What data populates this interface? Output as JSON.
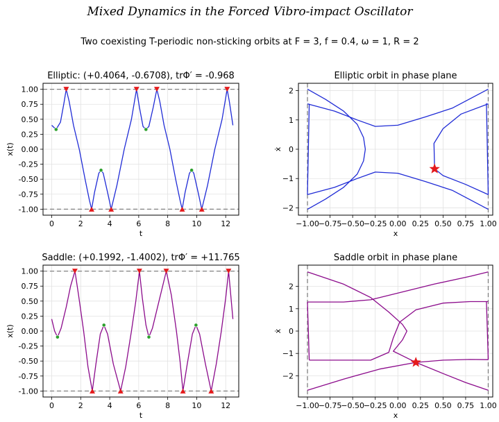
{
  "figure": {
    "title": "Mixed Dynamics in the Forced Vibro-impact Oscillator",
    "subtitle": "Two coexisting T-periodic non-sticking orbits at F = 3, f = 0.4, ω = 1, R = 2"
  },
  "chart_data": [
    {
      "type": "line",
      "title": "Elliptic: (+0.4064, -0.6708), trΦ′ = -0.968",
      "xlabel": "t",
      "ylabel": "x(t)",
      "xlim": [
        -0.6,
        12.9
      ],
      "ylim": [
        -1.1,
        1.1
      ],
      "xticks": [
        0,
        2,
        4,
        6,
        8,
        10,
        12
      ],
      "yticks": [
        1.0,
        0.75,
        0.5,
        0.25,
        0.0,
        -0.25,
        -0.5,
        -0.75,
        -1.0
      ],
      "ytick_labels": [
        "1.00",
        "0.75",
        "0.50",
        "0.25",
        "0.00",
        "-0.25",
        "-0.50",
        "-0.75",
        "-1.00"
      ],
      "grid": true,
      "guide_lines": [
        1.0,
        -1.0
      ],
      "color": "#1f2bd6",
      "series": [
        {
          "points": [
            [
              0.0,
              0.4
            ],
            [
              0.3,
              0.33
            ],
            [
              0.6,
              0.45
            ],
            [
              0.85,
              0.78
            ],
            [
              1.0,
              1.0
            ],
            [
              1.2,
              0.8
            ],
            [
              1.5,
              0.4
            ],
            [
              1.9,
              0.0
            ],
            [
              2.3,
              -0.5
            ],
            [
              2.6,
              -0.85
            ],
            [
              2.75,
              -1.0
            ],
            [
              2.95,
              -0.72
            ],
            [
              3.25,
              -0.4
            ],
            [
              3.4,
              -0.35
            ],
            [
              3.55,
              -0.4
            ],
            [
              3.85,
              -0.72
            ],
            [
              4.1,
              -1.0
            ],
            [
              4.5,
              -0.6
            ],
            [
              5.0,
              0.0
            ],
            [
              5.5,
              0.5
            ],
            [
              5.85,
              1.0
            ],
            [
              6.05,
              0.7
            ],
            [
              6.3,
              0.38
            ],
            [
              6.5,
              0.33
            ],
            [
              6.7,
              0.38
            ],
            [
              7.0,
              0.7
            ],
            [
              7.25,
              1.0
            ],
            [
              7.45,
              0.8
            ],
            [
              7.75,
              0.4
            ],
            [
              8.15,
              0.0
            ],
            [
              8.55,
              -0.5
            ],
            [
              8.85,
              -0.85
            ],
            [
              9.0,
              -1.0
            ],
            [
              9.2,
              -0.72
            ],
            [
              9.5,
              -0.4
            ],
            [
              9.65,
              -0.35
            ],
            [
              9.8,
              -0.4
            ],
            [
              10.1,
              -0.72
            ],
            [
              10.35,
              -1.0
            ],
            [
              10.75,
              -0.6
            ],
            [
              11.25,
              0.0
            ],
            [
              11.75,
              0.5
            ],
            [
              12.1,
              1.0
            ],
            [
              12.25,
              0.8
            ],
            [
              12.5,
              0.4
            ]
          ]
        }
      ],
      "impacts": {
        "upper_t": [
          1.0,
          5.85,
          7.25,
          12.1
        ],
        "lower_t": [
          2.75,
          4.1,
          9.0,
          10.35
        ]
      },
      "extrema": [
        [
          0.3,
          0.33
        ],
        [
          3.4,
          -0.35
        ],
        [
          6.5,
          0.33
        ],
        [
          9.65,
          -0.35
        ]
      ]
    },
    {
      "type": "line",
      "title": "Elliptic orbit in phase plane",
      "xlabel": "x",
      "ylabel": "ẋ",
      "xlim": [
        -1.1,
        1.05
      ],
      "ylim": [
        -2.25,
        2.25
      ],
      "xticks": [
        -1.0,
        -0.75,
        -0.5,
        -0.25,
        0.0,
        0.25,
        0.5,
        0.75,
        1.0
      ],
      "xtick_labels": [
        "−1.00",
        "−0.75",
        "−0.50",
        "−0.25",
        "0.00",
        "0.25",
        "0.50",
        "0.75",
        "1.00"
      ],
      "yticks": [
        2,
        1,
        0,
        -1,
        -2
      ],
      "ytick_labels": [
        "2",
        "1",
        "0",
        "−1",
        "−2"
      ],
      "grid": true,
      "guide_lines": [
        -1.0,
        1.0
      ],
      "color": "#1f2bd6",
      "series": [
        {
          "points": [
            [
              -1.0,
              2.05
            ],
            [
              -0.8,
              1.7
            ],
            [
              -0.6,
              1.3
            ],
            [
              -0.45,
              0.85
            ],
            [
              -0.38,
              0.4
            ],
            [
              -0.36,
              0.0
            ],
            [
              -0.38,
              -0.4
            ],
            [
              -0.45,
              -0.85
            ],
            [
              -0.6,
              -1.3
            ],
            [
              -0.8,
              -1.7
            ],
            [
              -1.0,
              -2.05
            ]
          ]
        },
        {
          "points": [
            [
              -1.0,
              1.55
            ],
            [
              -0.7,
              1.3
            ],
            [
              -0.45,
              1.0
            ],
            [
              -0.25,
              0.78
            ],
            [
              0.0,
              0.82
            ],
            [
              0.3,
              1.1
            ],
            [
              0.6,
              1.4
            ],
            [
              1.0,
              2.05
            ]
          ]
        },
        {
          "points": [
            [
              -1.0,
              -1.55
            ],
            [
              -0.7,
              -1.3
            ],
            [
              -0.45,
              -1.0
            ],
            [
              -0.25,
              -0.78
            ],
            [
              0.0,
              -0.82
            ],
            [
              0.3,
              -1.1
            ],
            [
              0.6,
              -1.4
            ],
            [
              1.0,
              -2.05
            ]
          ]
        },
        {
          "points": [
            [
              1.0,
              1.55
            ],
            [
              0.7,
              1.2
            ],
            [
              0.5,
              0.7
            ],
            [
              0.4,
              0.2
            ],
            [
              0.4064,
              -0.6708
            ],
            [
              0.5,
              -0.9
            ],
            [
              0.75,
              -1.2
            ],
            [
              1.0,
              -1.55
            ]
          ]
        },
        {
          "points": [
            [
              0.98,
              1.57
            ],
            [
              1.0,
              -1.55
            ]
          ]
        },
        {
          "points": [
            [
              -0.98,
              1.55
            ],
            [
              -1.0,
              -1.55
            ]
          ]
        }
      ],
      "marker": {
        "x": 0.4064,
        "y": -0.6708,
        "color": "#e41a1c"
      }
    },
    {
      "type": "line",
      "title": "Saddle: (+0.1992, -1.4002), trΦ′ = +11.765",
      "xlabel": "t",
      "ylabel": "x(t)",
      "xlim": [
        -0.6,
        12.9
      ],
      "ylim": [
        -1.1,
        1.1
      ],
      "xticks": [
        0,
        2,
        4,
        6,
        8,
        10,
        12
      ],
      "yticks": [
        1.0,
        0.75,
        0.5,
        0.25,
        0.0,
        -0.25,
        -0.5,
        -0.75,
        -1.0
      ],
      "ytick_labels": [
        "1.00",
        "0.75",
        "0.50",
        "0.25",
        "0.00",
        "-0.25",
        "-0.50",
        "-0.75",
        "-1.00"
      ],
      "grid": true,
      "guide_lines": [
        1.0,
        -1.0
      ],
      "color": "#8b0a8b",
      "series": [
        {
          "points": [
            [
              0.0,
              0.2
            ],
            [
              0.2,
              0.0
            ],
            [
              0.4,
              -0.1
            ],
            [
              0.65,
              0.05
            ],
            [
              1.0,
              0.4
            ],
            [
              1.3,
              0.75
            ],
            [
              1.6,
              1.0
            ],
            [
              1.85,
              0.6
            ],
            [
              2.2,
              0.0
            ],
            [
              2.5,
              -0.6
            ],
            [
              2.8,
              -1.0
            ],
            [
              3.05,
              -0.55
            ],
            [
              3.35,
              -0.05
            ],
            [
              3.6,
              0.1
            ],
            [
              3.85,
              -0.05
            ],
            [
              4.25,
              -0.55
            ],
            [
              4.75,
              -1.0
            ],
            [
              5.1,
              -0.6
            ],
            [
              5.5,
              0.0
            ],
            [
              5.8,
              0.5
            ],
            [
              6.05,
              1.0
            ],
            [
              6.25,
              0.55
            ],
            [
              6.5,
              0.1
            ],
            [
              6.7,
              -0.1
            ],
            [
              6.95,
              0.05
            ],
            [
              7.4,
              0.5
            ],
            [
              7.9,
              1.0
            ],
            [
              8.25,
              0.6
            ],
            [
              8.6,
              0.0
            ],
            [
              8.85,
              -0.5
            ],
            [
              9.05,
              -1.0
            ],
            [
              9.35,
              -0.55
            ],
            [
              9.7,
              -0.05
            ],
            [
              9.95,
              0.1
            ],
            [
              10.2,
              -0.05
            ],
            [
              10.6,
              -0.55
            ],
            [
              11.0,
              -1.0
            ],
            [
              11.35,
              -0.55
            ],
            [
              11.7,
              0.0
            ],
            [
              12.0,
              0.55
            ],
            [
              12.2,
              1.0
            ],
            [
              12.35,
              0.6
            ],
            [
              12.5,
              0.2
            ]
          ]
        }
      ],
      "impacts": {
        "upper_t": [
          1.6,
          6.05,
          7.9,
          12.2
        ],
        "lower_t": [
          2.8,
          4.75,
          9.05,
          11.0
        ]
      },
      "extrema": [
        [
          0.4,
          -0.1
        ],
        [
          3.6,
          0.1
        ],
        [
          6.7,
          -0.1
        ],
        [
          9.95,
          0.1
        ]
      ]
    },
    {
      "type": "line",
      "title": "Saddle orbit in phase plane",
      "xlabel": "x",
      "ylabel": "ẋ",
      "xlim": [
        -1.1,
        1.05
      ],
      "ylim": [
        -2.95,
        2.95
      ],
      "xticks": [
        -1.0,
        -0.75,
        -0.5,
        -0.25,
        0.0,
        0.25,
        0.5,
        0.75,
        1.0
      ],
      "xtick_labels": [
        "−1.00",
        "−0.75",
        "−0.50",
        "−0.25",
        "0.00",
        "0.25",
        "0.50",
        "0.75",
        "1.00"
      ],
      "yticks": [
        2,
        1,
        0,
        -1,
        -2
      ],
      "ytick_labels": [
        "2",
        "1",
        "0",
        "−1",
        "−2"
      ],
      "grid": true,
      "guide_lines": [
        -1.0,
        1.0
      ],
      "color": "#8b0a8b",
      "series": [
        {
          "points": [
            [
              -1.0,
              2.65
            ],
            [
              -0.6,
              2.1
            ],
            [
              -0.3,
              1.5
            ],
            [
              -0.1,
              0.85
            ],
            [
              0.05,
              0.3
            ],
            [
              0.1,
              0.0
            ],
            [
              0.05,
              -0.4
            ],
            [
              -0.05,
              -0.9
            ],
            [
              0.1992,
              -1.4002
            ],
            [
              0.5,
              -1.9
            ],
            [
              0.75,
              -2.3
            ],
            [
              1.0,
              -2.65
            ]
          ]
        },
        {
          "points": [
            [
              -1.0,
              -2.65
            ],
            [
              -0.6,
              -2.15
            ],
            [
              -0.2,
              -1.7
            ],
            [
              0.2,
              -1.4
            ],
            [
              0.5,
              -1.3
            ],
            [
              0.8,
              -1.27
            ],
            [
              1.0,
              -1.28
            ]
          ]
        },
        {
          "points": [
            [
              -1.0,
              1.3
            ],
            [
              -0.6,
              1.3
            ],
            [
              -0.3,
              1.4
            ],
            [
              0.0,
              1.7
            ],
            [
              0.4,
              2.1
            ],
            [
              0.8,
              2.45
            ],
            [
              1.0,
              2.65
            ]
          ]
        },
        {
          "points": [
            [
              -0.98,
              -1.3
            ],
            [
              -0.6,
              -1.3
            ],
            [
              -0.3,
              -1.3
            ],
            [
              -0.1,
              -0.95
            ],
            [
              -0.05,
              -0.3
            ],
            [
              0.02,
              0.4
            ],
            [
              0.2,
              0.95
            ],
            [
              0.5,
              1.25
            ],
            [
              0.8,
              1.32
            ],
            [
              1.0,
              1.32
            ]
          ]
        },
        {
          "points": [
            [
              1.0,
              -1.28
            ],
            [
              0.98,
              1.32
            ]
          ]
        },
        {
          "points": [
            [
              -1.0,
              1.3
            ],
            [
              -0.98,
              -1.3
            ]
          ]
        }
      ],
      "marker": {
        "x": 0.1992,
        "y": -1.4002,
        "color": "#e41a1c"
      }
    }
  ]
}
